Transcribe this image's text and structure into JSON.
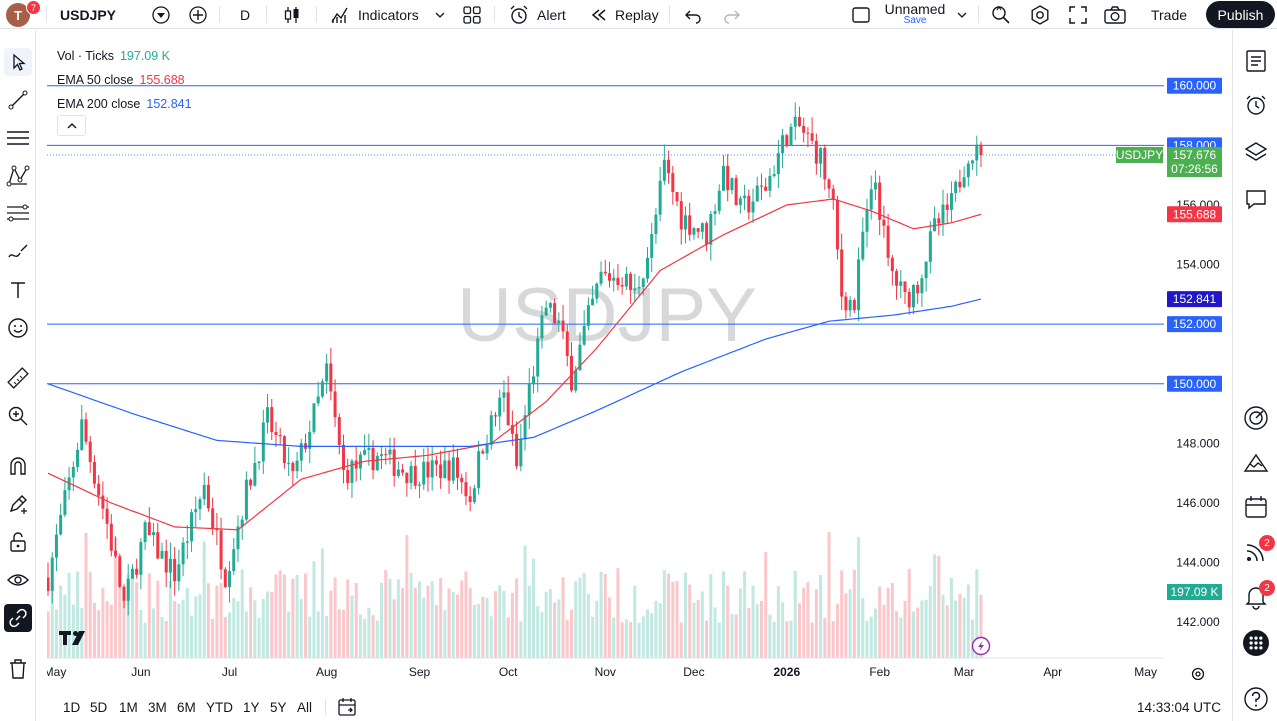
{
  "header": {
    "avatar_letter": "T",
    "avatar_badge": "7",
    "symbol": "USDJPY",
    "interval": "D",
    "indicators_label": "Indicators",
    "alert_label": "Alert",
    "replay_label": "Replay",
    "layout_name": "Unnamed",
    "layout_save": "Save",
    "trade_label": "Trade",
    "publish_label": "Publish"
  },
  "legend": {
    "vol_label": "Vol · Ticks",
    "vol_value": "197.09 K",
    "ema50_label": "EMA 50 close",
    "ema50_value": "155.688",
    "ema200_label": "EMA 200 close",
    "ema200_value": "152.841",
    "colors": {
      "vol": "#22ab94",
      "ema50": "#f23645",
      "ema200": "#2962ff"
    }
  },
  "right_toolbar": {
    "badge_1": "2",
    "badge_2": "2"
  },
  "bottom": {
    "ranges": [
      "1D",
      "5D",
      "1M",
      "3M",
      "6M",
      "YTD",
      "1Y",
      "5Y",
      "All"
    ],
    "clock": "14:33:04 UTC"
  },
  "chart_data": {
    "type": "candlestick",
    "symbol": "USDJPY",
    "watermark": "USDJPY",
    "y_range": [
      140.8,
      161.4
    ],
    "price_ticks": [
      "142.000",
      "144.000",
      "146.000",
      "148.000",
      "150.000",
      "152.000",
      "154.000",
      "156.000"
    ],
    "x_ticks": [
      {
        "label": "May",
        "t": 0
      },
      {
        "label": "Jun",
        "t": 22
      },
      {
        "label": "Jul",
        "t": 43
      },
      {
        "label": "Aug",
        "t": 66
      },
      {
        "label": "Sep",
        "t": 88
      },
      {
        "label": "Oct",
        "t": 109
      },
      {
        "label": "Nov",
        "t": 132
      },
      {
        "label": "Dec",
        "t": 153
      },
      {
        "label": "2026",
        "t": 175
      },
      {
        "label": "Feb",
        "t": 197
      },
      {
        "label": "Mar",
        "t": 217
      },
      {
        "label": "Apr",
        "t": 238
      },
      {
        "label": "May",
        "t": 260
      }
    ],
    "horizontal_lines": [
      {
        "price": 160.0,
        "label": "160.000"
      },
      {
        "price": 158.0,
        "label": "158.000"
      },
      {
        "price": 152.0,
        "label": "152.000"
      },
      {
        "price": 150.0,
        "label": "150.000"
      }
    ],
    "current": {
      "symbol": "USDJPY",
      "price": 157.676,
      "countdown": "07:26:56"
    },
    "ema50_label": "155.688",
    "ema200_label": "152.841",
    "volume_label": "197.09 K",
    "colors": {
      "up": "#22ab94",
      "down": "#f23645",
      "ema50": "#f23645",
      "ema200": "#2962ff",
      "level": "#2962ff",
      "current": "#4caf50"
    },
    "anchors": [
      {
        "t": 0,
        "p": 143.5
      },
      {
        "t": 8,
        "p": 148.6
      },
      {
        "t": 14,
        "p": 145.3
      },
      {
        "t": 18,
        "p": 142.6
      },
      {
        "t": 23,
        "p": 145.0
      },
      {
        "t": 30,
        "p": 143.6
      },
      {
        "t": 37,
        "p": 146.6
      },
      {
        "t": 42,
        "p": 143.6
      },
      {
        "t": 47,
        "p": 146.4
      },
      {
        "t": 52,
        "p": 148.8
      },
      {
        "t": 58,
        "p": 146.8
      },
      {
        "t": 64,
        "p": 149.4
      },
      {
        "t": 66,
        "p": 150.4
      },
      {
        "t": 70,
        "p": 147.0
      },
      {
        "t": 78,
        "p": 147.6
      },
      {
        "t": 86,
        "p": 147.0
      },
      {
        "t": 96,
        "p": 147.2
      },
      {
        "t": 100,
        "p": 146.2
      },
      {
        "t": 103,
        "p": 148.0
      },
      {
        "t": 108,
        "p": 149.6
      },
      {
        "t": 111,
        "p": 147.2
      },
      {
        "t": 114,
        "p": 149.8
      },
      {
        "t": 118,
        "p": 152.6
      },
      {
        "t": 121,
        "p": 152.0
      },
      {
        "t": 124,
        "p": 150.2
      },
      {
        "t": 128,
        "p": 152.2
      },
      {
        "t": 131,
        "p": 153.6
      },
      {
        "t": 136,
        "p": 153.6
      },
      {
        "t": 139,
        "p": 153.0
      },
      {
        "t": 143,
        "p": 154.8
      },
      {
        "t": 146,
        "p": 157.3
      },
      {
        "t": 150,
        "p": 155.6
      },
      {
        "t": 156,
        "p": 155.0
      },
      {
        "t": 160,
        "p": 157.2
      },
      {
        "t": 164,
        "p": 155.8
      },
      {
        "t": 170,
        "p": 156.6
      },
      {
        "t": 175,
        "p": 158.4
      },
      {
        "t": 178,
        "p": 158.6
      },
      {
        "t": 183,
        "p": 157.6
      },
      {
        "t": 186,
        "p": 155.8
      },
      {
        "t": 188,
        "p": 153.0
      },
      {
        "t": 191,
        "p": 152.6
      },
      {
        "t": 193,
        "p": 155.0
      },
      {
        "t": 196,
        "p": 156.8
      },
      {
        "t": 199,
        "p": 154.0
      },
      {
        "t": 203,
        "p": 152.8
      },
      {
        "t": 206,
        "p": 153.4
      },
      {
        "t": 210,
        "p": 155.2
      },
      {
        "t": 214,
        "p": 156.0
      },
      {
        "t": 218,
        "p": 157.8
      },
      {
        "t": 221,
        "p": 157.676
      }
    ],
    "ema50_points": [
      {
        "t": 0,
        "p": 147.0
      },
      {
        "t": 15,
        "p": 146.0
      },
      {
        "t": 30,
        "p": 145.2
      },
      {
        "t": 45,
        "p": 145.1
      },
      {
        "t": 60,
        "p": 146.8
      },
      {
        "t": 75,
        "p": 147.4
      },
      {
        "t": 90,
        "p": 147.6
      },
      {
        "t": 105,
        "p": 148.0
      },
      {
        "t": 118,
        "p": 149.4
      },
      {
        "t": 130,
        "p": 151.2
      },
      {
        "t": 145,
        "p": 153.8
      },
      {
        "t": 160,
        "p": 155.0
      },
      {
        "t": 175,
        "p": 156.0
      },
      {
        "t": 186,
        "p": 156.2
      },
      {
        "t": 195,
        "p": 155.8
      },
      {
        "t": 205,
        "p": 155.2
      },
      {
        "t": 214,
        "p": 155.4
      },
      {
        "t": 221,
        "p": 155.688
      }
    ],
    "ema200_points": [
      {
        "t": 0,
        "p": 150.0
      },
      {
        "t": 20,
        "p": 149.0
      },
      {
        "t": 40,
        "p": 148.1
      },
      {
        "t": 60,
        "p": 147.9
      },
      {
        "t": 80,
        "p": 147.9
      },
      {
        "t": 100,
        "p": 147.9
      },
      {
        "t": 115,
        "p": 148.2
      },
      {
        "t": 130,
        "p": 149.1
      },
      {
        "t": 150,
        "p": 150.4
      },
      {
        "t": 170,
        "p": 151.5
      },
      {
        "t": 185,
        "p": 152.1
      },
      {
        "t": 200,
        "p": 152.3
      },
      {
        "t": 214,
        "p": 152.6
      },
      {
        "t": 221,
        "p": 152.841
      }
    ]
  }
}
